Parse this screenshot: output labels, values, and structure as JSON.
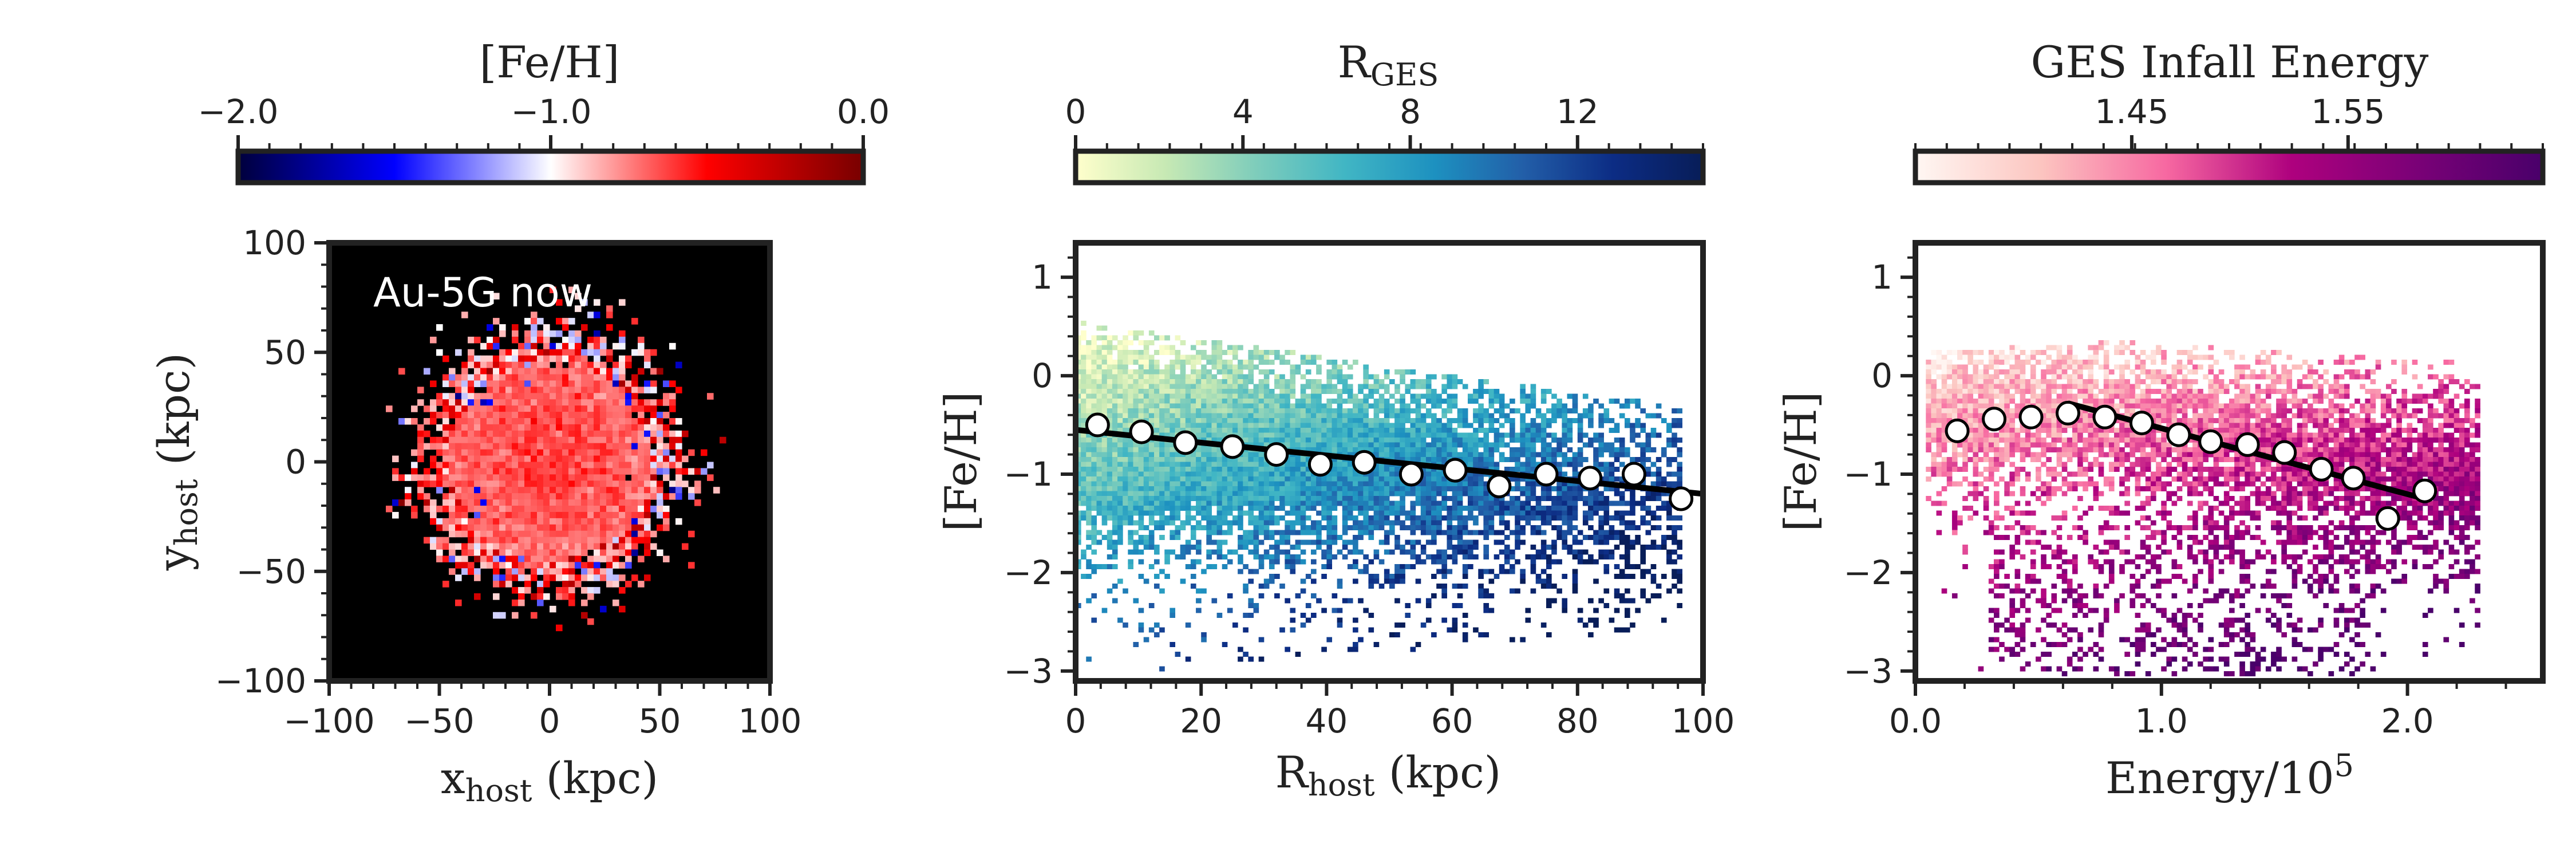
{
  "panels": [
    {
      "id": "map",
      "colorbar": {
        "label": "[Fe/H]",
        "ticks": [
          "−2.0",
          "−1.0",
          "0.0"
        ],
        "tick_values": [
          -2.0,
          -1.0,
          0.0
        ],
        "range": [
          -2.0,
          0.0
        ],
        "colors": [
          "#00003c",
          "#0000ff",
          "#ffffff",
          "#ff0000",
          "#780000"
        ]
      },
      "annotation": "Au-5G now",
      "xlabel_main": "x",
      "xlabel_sub": "host",
      "xlabel_tail": " (kpc)",
      "ylabel_main": "y",
      "ylabel_sub": "host",
      "ylabel_tail": " (kpc)"
    },
    {
      "id": "radius",
      "colorbar": {
        "label_main": "R",
        "label_sub": "GES",
        "ticks": [
          "0",
          "4",
          "8",
          "12"
        ],
        "tick_values": [
          0,
          4,
          8,
          12
        ],
        "range": [
          0,
          15
        ],
        "colors": [
          "#ffffcc",
          "#c7e9b4",
          "#7fcdbb",
          "#41b6c4",
          "#1d91c0",
          "#225ea8",
          "#0c2c84",
          "#081d58"
        ]
      },
      "xlabel_main": "R",
      "xlabel_sub": "host",
      "xlabel_tail": " (kpc)",
      "ylabel": "[Fe/H]"
    },
    {
      "id": "energy",
      "colorbar": {
        "label": "GES Infall Energy",
        "ticks": [
          "1.45",
          "1.55"
        ],
        "tick_values": [
          1.45,
          1.55
        ],
        "range": [
          1.35,
          1.64
        ],
        "colors": [
          "#fff7f3",
          "#fcc5c0",
          "#f768a1",
          "#ae017e",
          "#7a0177",
          "#49006a"
        ]
      },
      "xlabel_main": "Energy/10",
      "xlabel_sup": "5",
      "ylabel": "[Fe/H]"
    }
  ],
  "chart_data": [
    {
      "type": "heatmap",
      "title": "Au-5G now",
      "xlabel": "x_host (kpc)",
      "ylabel": "y_host (kpc)",
      "xlim": [
        -100,
        100
      ],
      "ylim": [
        -100,
        100
      ],
      "xticks": [
        -100,
        -50,
        0,
        50,
        100
      ],
      "yticks": [
        -100,
        -50,
        0,
        50,
        100
      ],
      "xtick_labels": [
        "−100",
        "−50",
        "0",
        "50",
        "100"
      ],
      "ytick_labels": [
        "−100",
        "−50",
        "0",
        "50",
        "100"
      ],
      "color_quantity": "[Fe/H]",
      "center_feh": -0.6,
      "edge_feh": -0.75,
      "extent_radius_kpc": 60
    },
    {
      "type": "scatter",
      "title": "",
      "xlabel": "R_host (kpc)",
      "ylabel": "[Fe/H]",
      "xlim": [
        0,
        100
      ],
      "ylim": [
        -3.1,
        1.35
      ],
      "xticks": [
        0,
        20,
        40,
        60,
        80,
        100
      ],
      "yticks": [
        1,
        0,
        -1,
        -2,
        -3
      ],
      "xtick_labels": [
        "0",
        "20",
        "40",
        "60",
        "80",
        "100"
      ],
      "ytick_labels": [
        "1",
        "0",
        "−1",
        "−2",
        "−3"
      ],
      "color_quantity": "R_GES",
      "binned_medians": {
        "x": [
          3.5,
          10.5,
          17.5,
          25,
          32,
          39,
          46,
          53.5,
          60.5,
          67.5,
          75,
          82,
          89,
          96.5
        ],
        "y": [
          -0.5,
          -0.57,
          -0.68,
          -0.72,
          -0.8,
          -0.9,
          -0.88,
          -1.0,
          -0.96,
          -1.12,
          -1.0,
          -1.04,
          -1.0,
          -1.25
        ]
      },
      "fit_line": {
        "x": [
          0,
          100
        ],
        "y": [
          -0.55,
          -1.2
        ]
      }
    },
    {
      "type": "scatter",
      "title": "",
      "xlabel": "Energy/10^5",
      "ylabel": "[Fe/H]",
      "xlim": [
        0,
        2.55
      ],
      "ylim": [
        -3.1,
        1.35
      ],
      "xticks": [
        0.0,
        1.0,
        2.0
      ],
      "yticks": [
        1,
        0,
        -1,
        -2,
        -3
      ],
      "xtick_labels": [
        "0.0",
        "1.0",
        "2.0"
      ],
      "ytick_labels": [
        "1",
        "0",
        "−1",
        "−2",
        "−3"
      ],
      "color_quantity": "GES Infall Energy",
      "binned_medians": {
        "x": [
          0.17,
          0.32,
          0.47,
          0.62,
          0.77,
          0.92,
          1.07,
          1.2,
          1.35,
          1.5,
          1.65,
          1.78,
          1.92,
          2.07
        ],
        "y": [
          -0.56,
          -0.44,
          -0.42,
          -0.38,
          -0.42,
          -0.48,
          -0.6,
          -0.67,
          -0.7,
          -0.78,
          -0.95,
          -1.04,
          -1.45,
          -1.17
        ]
      },
      "fit_line": {
        "x": [
          0.62,
          2.07
        ],
        "y": [
          -0.28,
          -1.25
        ]
      }
    }
  ]
}
